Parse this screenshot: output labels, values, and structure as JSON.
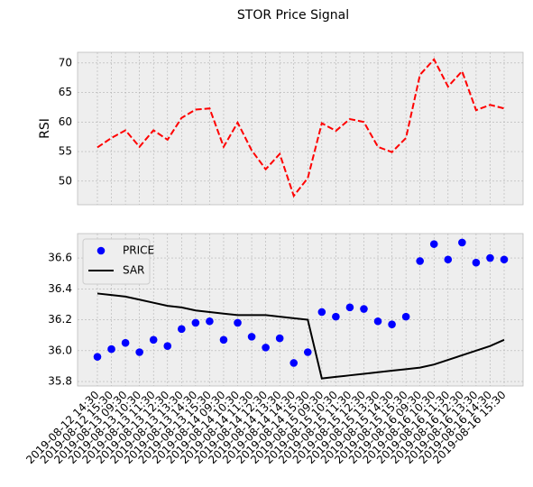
{
  "chart_data": [
    {
      "type": "line",
      "title": "STOR Price Signal",
      "ylabel": "RSI",
      "series": [
        {
          "color": "#ff0000",
          "linestyle": "--",
          "values": [
            55.7,
            57.3,
            58.6,
            55.8,
            58.6,
            57.0,
            60.7,
            62.1,
            62.3,
            55.8,
            59.9,
            55.2,
            52.0,
            54.6,
            47.5,
            50.5,
            59.8,
            58.5,
            60.5,
            60.0,
            55.8,
            54.9,
            57.3,
            68.0,
            70.6,
            66.0,
            68.6,
            62.0,
            62.9,
            62.3
          ]
        }
      ],
      "ylim": [
        46.0,
        71.8
      ],
      "yticks": [
        50,
        55,
        60,
        65,
        70
      ],
      "grid": true
    },
    {
      "type": "line",
      "categories": [
        "2019-08-12 14:30",
        "2019-08-12 15:30",
        "2019-08-13 09:30",
        "2019-08-13 10:30",
        "2019-08-13 11:30",
        "2019-08-13 12:30",
        "2019-08-13 13:30",
        "2019-08-13 14:30",
        "2019-08-13 15:30",
        "2019-08-14 09:30",
        "2019-08-14 10:30",
        "2019-08-14 11:30",
        "2019-08-14 12:30",
        "2019-08-14 13:30",
        "2019-08-14 14:30",
        "2019-08-14 15:30",
        "2019-08-15 09:30",
        "2019-08-15 10:30",
        "2019-08-15 11:30",
        "2019-08-15 12:30",
        "2019-08-15 13:30",
        "2019-08-15 14:30",
        "2019-08-15 15:30",
        "2019-08-16 09:30",
        "2019-08-16 10:30",
        "2019-08-16 11:30",
        "2019-08-16 12:30",
        "2019-08-16 13:30",
        "2019-08-16 14:30",
        "2019-08-16 15:30"
      ],
      "series": [
        {
          "name": "PRICE",
          "color": "#0000ff",
          "linestyle": "none",
          "marker": "o",
          "values": [
            35.96,
            36.01,
            36.05,
            35.99,
            36.07,
            36.03,
            36.14,
            36.18,
            36.19,
            36.07,
            36.18,
            36.09,
            36.02,
            36.08,
            35.92,
            35.99,
            36.25,
            36.22,
            36.28,
            36.27,
            36.19,
            36.17,
            36.22,
            36.58,
            36.69,
            36.59,
            36.7,
            36.57,
            36.6,
            36.59
          ]
        },
        {
          "name": "SAR",
          "color": "#000000",
          "linestyle": "-",
          "values": [
            36.37,
            36.36,
            36.35,
            36.33,
            36.31,
            36.29,
            36.28,
            36.26,
            36.25,
            36.24,
            36.23,
            36.23,
            36.23,
            36.22,
            36.21,
            36.2,
            35.82,
            35.83,
            35.84,
            35.85,
            35.86,
            35.87,
            35.88,
            35.89,
            35.91,
            35.94,
            35.97,
            36.0,
            36.03,
            36.07
          ]
        }
      ],
      "ylim": [
        35.771,
        36.758
      ],
      "yticks": [
        35.8,
        {
          "value": 36.0,
          "label": "36.0"
        },
        36.2,
        36.4,
        36.6
      ],
      "grid": true,
      "legend": "upper left"
    }
  ]
}
